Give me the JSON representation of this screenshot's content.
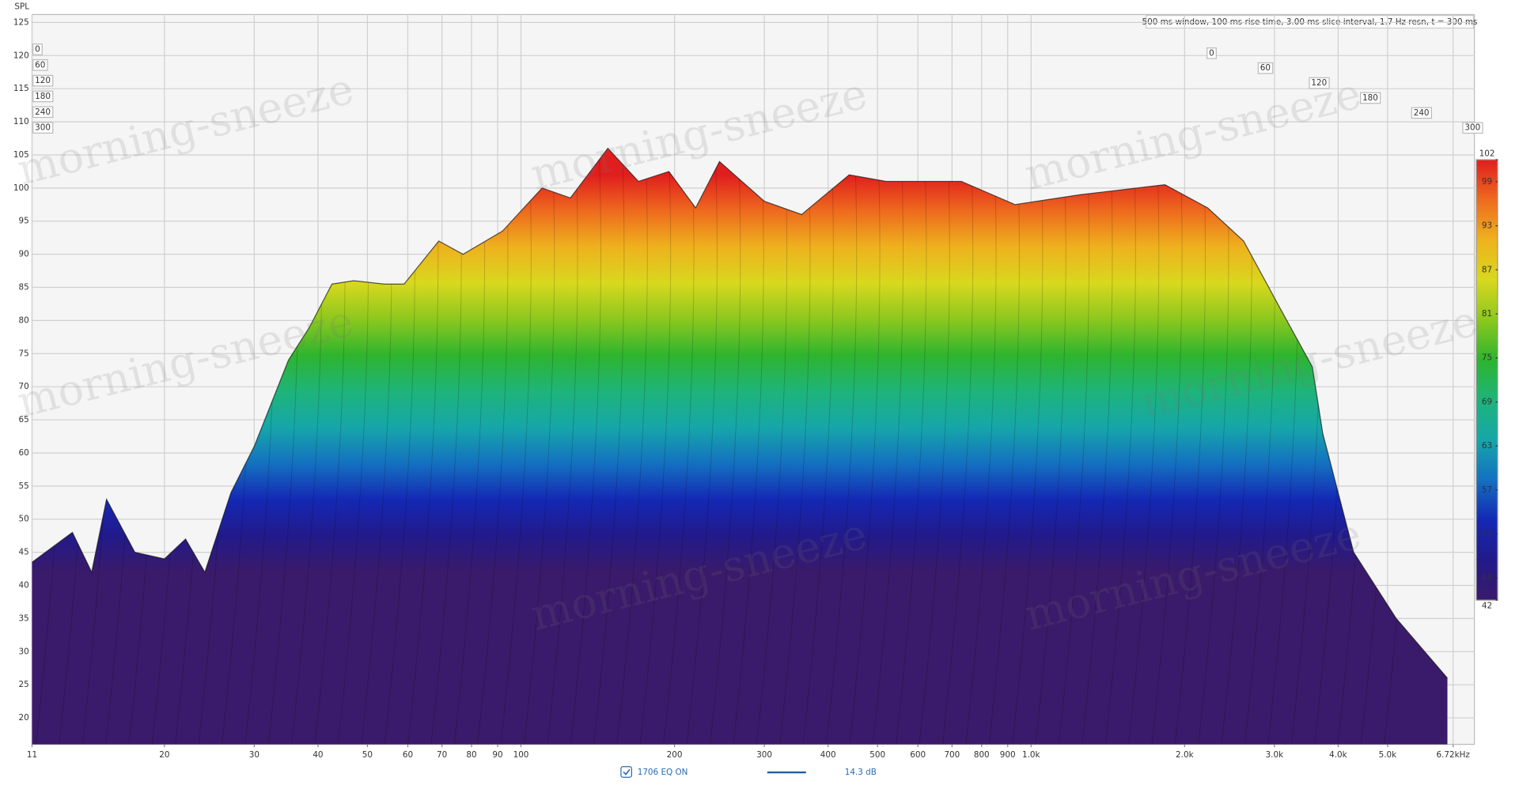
{
  "chart_data": {
    "type": "waterfall",
    "y_label": "SPL",
    "header": "500 ms window, 100 ms rise time, 3.00 ms slice interval, 1.7 Hz resn, t = 300 ms",
    "watermark": "morning-sneeze",
    "log_x": true,
    "grid": true,
    "xlim": [
      11,
      6720
    ],
    "xticks": [
      11,
      20,
      30,
      40,
      50,
      60,
      70,
      80,
      90,
      100,
      200,
      300,
      400,
      500,
      600,
      700,
      800,
      900,
      {
        "value": 1000,
        "label": "1.0k"
      },
      {
        "value": 2000,
        "label": "2.0k"
      },
      {
        "value": 3000,
        "label": "3.0k"
      },
      {
        "value": 4000,
        "label": "4.0k"
      },
      {
        "value": 5000,
        "label": "5.0k"
      },
      {
        "value": 6720,
        "label": "6.72kHz"
      }
    ],
    "ylim": [
      16,
      126.2
    ],
    "yticks": [
      20,
      25,
      30,
      35,
      40,
      45,
      50,
      55,
      60,
      65,
      70,
      75,
      80,
      85,
      90,
      95,
      100,
      105,
      110,
      115,
      120,
      125
    ],
    "time_ticks": [
      0,
      60,
      120,
      180,
      240,
      300
    ],
    "colorbar": {
      "lim": [
        42,
        102
      ],
      "ticks": [
        102,
        99,
        93,
        87,
        81,
        75,
        69,
        63,
        57,
        51,
        45,
        42
      ],
      "colors": [
        "#e01e1e",
        "#ee6a1e",
        "#eeb21e",
        "#d8d81e",
        "#8cc81e",
        "#2eb42e",
        "#1eb47a",
        "#16a6aa",
        "#1470c0",
        "#1428b4",
        "#221a8a",
        "#3a1a6a"
      ]
    },
    "series": [
      {
        "name": "1706 EQ ON",
        "color": "#1f5f9f",
        "legend_value": "14.3 dB",
        "x": [
          11,
          13.2,
          14.4,
          15.4,
          17.5,
          20,
          22,
          24,
          27,
          30,
          35,
          38.5,
          42.6,
          47,
          54,
          59,
          69,
          77,
          92,
          110,
          125,
          148,
          170,
          195,
          220,
          245,
          300,
          355,
          440,
          520,
          730,
          930,
          1250,
          1830,
          2220,
          2610,
          3070,
          3560,
          3730,
          4290,
          5200,
          6550
        ],
        "values": [
          43.5,
          48,
          42,
          53,
          45,
          44,
          47,
          42,
          54,
          61,
          74,
          79,
          85.5,
          86,
          85.5,
          85.5,
          92,
          90,
          93.5,
          100,
          98.5,
          106,
          101,
          102.5,
          97,
          104,
          98,
          96,
          102,
          101,
          101,
          97.5,
          99,
          100.5,
          97,
          92,
          82,
          73,
          63,
          45,
          35,
          26
        ]
      }
    ]
  }
}
